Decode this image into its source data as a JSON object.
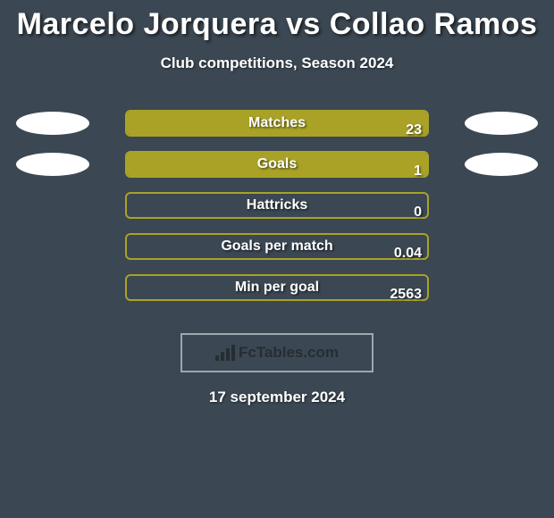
{
  "title": "Marcelo Jorquera vs Collao Ramos",
  "subtitle": "Club competitions, Season 2024",
  "date": "17 september 2024",
  "watermark": "FcTables.com",
  "colors": {
    "background": "#3b4752",
    "bar_fill": "#a9a227",
    "bar_border": "#a9a227",
    "text": "#ffffff",
    "oval": "#ffffff",
    "watermark_border": "#a0a7ad",
    "watermark_text": "#262d33"
  },
  "chart": {
    "type": "comparison-bars",
    "bar_track_width": 340,
    "bar_track_height": 30,
    "bar_border_radius": 6,
    "font_size_label": 16,
    "font_size_value": 16
  },
  "rows": [
    {
      "label": "Matches",
      "left_value": "",
      "right_value": "23",
      "left_fill_pct": 100,
      "right_fill_pct": 0,
      "show_left_oval": true,
      "show_right_oval": true
    },
    {
      "label": "Goals",
      "left_value": "",
      "right_value": "1",
      "left_fill_pct": 100,
      "right_fill_pct": 0,
      "show_left_oval": true,
      "show_right_oval": true
    },
    {
      "label": "Hattricks",
      "left_value": "",
      "right_value": "0",
      "left_fill_pct": 0,
      "right_fill_pct": 0,
      "show_left_oval": false,
      "show_right_oval": false
    },
    {
      "label": "Goals per match",
      "left_value": "",
      "right_value": "0.04",
      "left_fill_pct": 0,
      "right_fill_pct": 0,
      "show_left_oval": false,
      "show_right_oval": false
    },
    {
      "label": "Min per goal",
      "left_value": "",
      "right_value": "2563",
      "left_fill_pct": 0,
      "right_fill_pct": 0,
      "show_left_oval": false,
      "show_right_oval": false
    }
  ]
}
